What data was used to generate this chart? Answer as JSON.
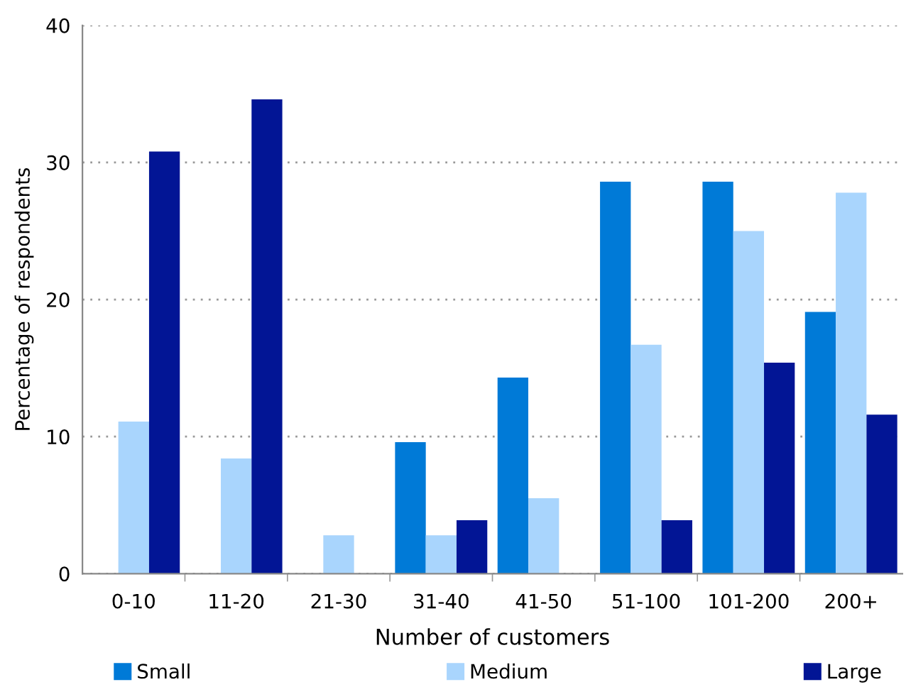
{
  "chart_data": {
    "type": "bar",
    "xlabel": "Number of customers",
    "ylabel": "Percentage of respondents",
    "categories": [
      "0-10",
      "11-20",
      "21-30",
      "31-40",
      "41-50",
      "51-100",
      "101-200",
      "200+"
    ],
    "series": [
      {
        "name": "Small",
        "color": "#007ad7",
        "values": [
          0,
          0,
          0,
          9.6,
          14.3,
          28.6,
          28.6,
          19.1
        ]
      },
      {
        "name": "Medium",
        "color": "#a9d5fd",
        "values": [
          11.1,
          8.4,
          2.8,
          2.8,
          5.5,
          16.7,
          25.0,
          27.8
        ]
      },
      {
        "name": "Large",
        "color": "#021595",
        "values": [
          30.8,
          34.6,
          0,
          3.9,
          0,
          3.9,
          15.4,
          11.6
        ]
      }
    ],
    "ylim": [
      0,
      40
    ],
    "yticks": [
      0,
      10,
      20,
      30,
      40
    ],
    "grid": "y",
    "legend": "bottom"
  }
}
